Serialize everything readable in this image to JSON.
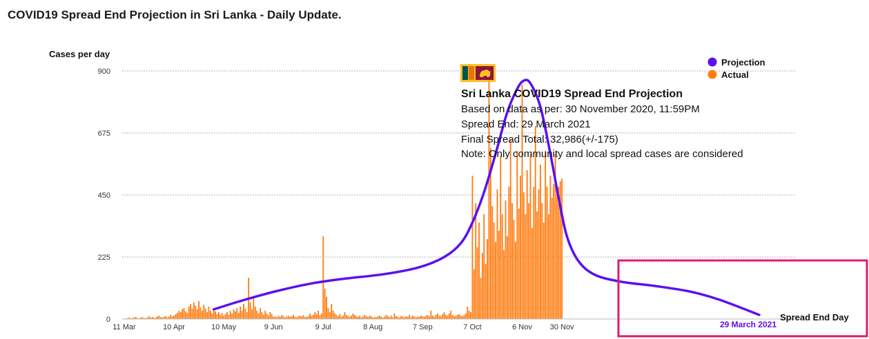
{
  "page_title": "COVID19 Spread End Projection in Sri Lanka - Daily Update.",
  "colors": {
    "projection": "#5b0ff2",
    "actual": "#ff7d12",
    "highlight_box": "#e01a6e",
    "flag_bg": "#8d153a",
    "flag_green": "#00534e",
    "flag_orange": "#eb7400",
    "flag_lion": "#ffbe29"
  },
  "icons": {
    "flag": "sri-lanka-flag-icon"
  },
  "chart_data": {
    "type": "bar+line",
    "ylabel": "Cases per day",
    "xlabel": "Spread End Day",
    "ylim": [
      0,
      900
    ],
    "y_ticks": [
      0,
      225,
      450,
      675,
      900
    ],
    "x_range": [
      "2020-03-11",
      "2021-03-29"
    ],
    "x_ticks": [
      {
        "date": "2020-03-11",
        "label": "11 Mar"
      },
      {
        "date": "2020-04-10",
        "label": "10 Apr"
      },
      {
        "date": "2020-05-10",
        "label": "10 May"
      },
      {
        "date": "2020-06-09",
        "label": "9 Jun"
      },
      {
        "date": "2020-07-09",
        "label": "9 Jul"
      },
      {
        "date": "2020-08-08",
        "label": "8 Aug"
      },
      {
        "date": "2020-09-07",
        "label": "7 Sep"
      },
      {
        "date": "2020-10-07",
        "label": "7 Oct"
      },
      {
        "date": "2020-11-06",
        "label": "6 Nov"
      },
      {
        "date": "2020-11-30",
        "label": "30 Nov"
      }
    ],
    "grid": "horizontal-dotted",
    "legend": {
      "position": "top-right",
      "items": [
        {
          "name": "Projection",
          "color": "#5b0ff2"
        },
        {
          "name": "Actual",
          "color": "#ff7d12"
        }
      ]
    },
    "annotation": {
      "title": "Sri Lanka COVID19 Spread End Projection",
      "lines": [
        "Based on data as per: 30 November 2020, 11:59PM",
        "Spread End: 29 March 2021",
        "Final Spread Total: 32,986(+/-175)",
        "Note: Only community and local spread cases are considered"
      ]
    },
    "spread_end_label": "29 March 2021",
    "series": [
      {
        "name": "Projection",
        "kind": "line",
        "points": [
          [
            "2020-05-04",
            35
          ],
          [
            "2020-05-20",
            65
          ],
          [
            "2020-06-10",
            100
          ],
          [
            "2020-07-01",
            128
          ],
          [
            "2020-07-20",
            145
          ],
          [
            "2020-08-15",
            163
          ],
          [
            "2020-09-05",
            188
          ],
          [
            "2020-09-20",
            225
          ],
          [
            "2020-09-30",
            275
          ],
          [
            "2020-10-07",
            350
          ],
          [
            "2020-10-14",
            460
          ],
          [
            "2020-10-21",
            600
          ],
          [
            "2020-10-28",
            750
          ],
          [
            "2020-11-03",
            835
          ],
          [
            "2020-11-07",
            865
          ],
          [
            "2020-11-11",
            855
          ],
          [
            "2020-11-17",
            770
          ],
          [
            "2020-11-23",
            600
          ],
          [
            "2020-11-28",
            440
          ],
          [
            "2020-12-03",
            300
          ],
          [
            "2020-12-10",
            210
          ],
          [
            "2020-12-20",
            160
          ],
          [
            "2021-01-05",
            135
          ],
          [
            "2021-01-25",
            120
          ],
          [
            "2021-02-15",
            100
          ],
          [
            "2021-03-05",
            70
          ],
          [
            "2021-03-29",
            15
          ]
        ]
      },
      {
        "name": "Actual",
        "kind": "bar",
        "segments": [
          {
            "start": "2020-03-11",
            "values": [
              1,
              2,
              3,
              5,
              2,
              4,
              6,
              8,
              3,
              2,
              5,
              7,
              4,
              3,
              6,
              10,
              5,
              8,
              4,
              6,
              9,
              12,
              7,
              5,
              8,
              11,
              6,
              9,
              15,
              10
            ]
          },
          {
            "start": "2020-04-10",
            "values": [
              12,
              18,
              22,
              30,
              25,
              35,
              40,
              28,
              22,
              45,
              55,
              38,
              60,
              48,
              35,
              65,
              42,
              30,
              52,
              38,
              25,
              45,
              30,
              20,
              35,
              28,
              18,
              25,
              15,
              22
            ]
          },
          {
            "start": "2020-05-10",
            "values": [
              12,
              18,
              25,
              15,
              30,
              20,
              35,
              28,
              40,
              22,
              45,
              30,
              55,
              38,
              25,
              150,
              60,
              35,
              80,
              45,
              30,
              20,
              40,
              25,
              15,
              30,
              20,
              12,
              25,
              18
            ]
          },
          {
            "start": "2020-06-09",
            "values": [
              8,
              10,
              6,
              12,
              8,
              15,
              10,
              5,
              9,
              12,
              7,
              10,
              15,
              8,
              6,
              10,
              12,
              9,
              14,
              7,
              8,
              10,
              20,
              12,
              15,
              25,
              18,
              30,
              12,
              20
            ]
          },
          {
            "start": "2020-07-09",
            "values": [
              300,
              110,
              80,
              40,
              25,
              55,
              30,
              20,
              15,
              10,
              18,
              8,
              12,
              25,
              15,
              10,
              8,
              12,
              20,
              15,
              10,
              8,
              12,
              6,
              9,
              15,
              10,
              8,
              12,
              10
            ]
          },
          {
            "start": "2020-08-08",
            "values": [
              5,
              8,
              6,
              10,
              12,
              8,
              5,
              9,
              15,
              10,
              7,
              12,
              6,
              20,
              10,
              8,
              5,
              12,
              9,
              6,
              10,
              8,
              15,
              7,
              12,
              10,
              6,
              9,
              8,
              12
            ]
          },
          {
            "start": "2020-09-07",
            "values": [
              10,
              8,
              12,
              15,
              10,
              30,
              12,
              8,
              15,
              20,
              12,
              10,
              18,
              25,
              15,
              12,
              20,
              30,
              15,
              10,
              12,
              15,
              18,
              12,
              10,
              15,
              20,
              45,
              30,
              25
            ]
          },
          {
            "start": "2020-10-07",
            "values": [
              520,
              180,
              420,
              260,
              350,
              150,
              240,
              380,
              200,
              290,
              860,
              620,
              410,
              350,
              280,
              470,
              320,
              590,
              380,
              250,
              430,
              300,
              480,
              650,
              420,
              360,
              280,
              610,
              400,
              520
            ]
          },
          {
            "start": "2020-11-06",
            "values": [
              850,
              460,
              380,
              540,
              420,
              600,
              330,
              480,
              700,
              390,
              470,
              560,
              420,
              350,
              610,
              480,
              380,
              520,
              440,
              490,
              600,
              460,
              480,
              500,
              510
            ]
          }
        ]
      }
    ]
  }
}
